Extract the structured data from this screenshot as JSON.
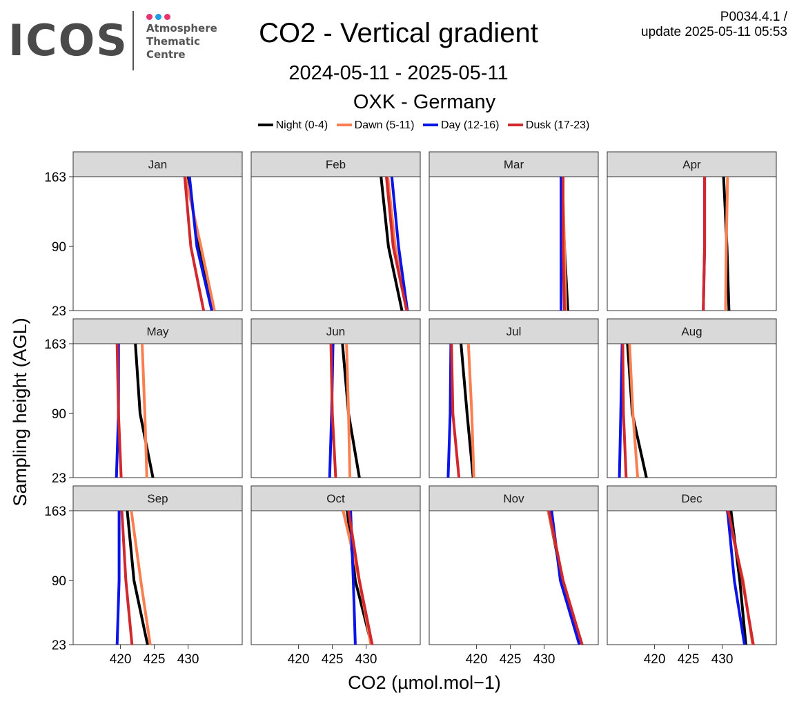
{
  "logo": {
    "wordmark": "ICOS",
    "lines": [
      "Atmosphere",
      "Thematic",
      "Centre"
    ],
    "dot_colors": [
      "#e6356f",
      "#1e9be9",
      "#e6356f"
    ]
  },
  "header": {
    "title": "CO2 - Vertical gradient",
    "date_range": "2024-05-11 - 2025-05-11",
    "site": "OXK - Germany",
    "version_line1": "P0034.4.1 /",
    "version_line2": "update  2025-05-11 05:53"
  },
  "chart_data": {
    "type": "line",
    "layout": "facet-grid 3x4",
    "xlabel": "CO2 (µmol.mol−1)",
    "ylabel": "Sampling height (AGL)",
    "xlim": [
      413,
      438
    ],
    "x_ticks": [
      420,
      425,
      430
    ],
    "y_ticks": [
      23,
      90,
      163
    ],
    "ylim": [
      23,
      163
    ],
    "legend_position": "top",
    "series": [
      {
        "name": "Night (0-4)",
        "color": "#000000"
      },
      {
        "name": "Dawn (5-11)",
        "color": "#f97f51"
      },
      {
        "name": "Day (12-16)",
        "color": "#0a14e6"
      },
      {
        "name": "Dusk (17-23)",
        "color": "#d1282d"
      }
    ],
    "heights": [
      23,
      90,
      163
    ],
    "panels": [
      {
        "month": "Jan",
        "values": {
          "Night (0-4)": [
            433.8,
            431.7,
            429.8
          ],
          "Dawn (5-11)": [
            433.9,
            431.9,
            429.6
          ],
          "Day (12-16)": [
            433.5,
            431.3,
            430.2
          ],
          "Dusk (17-23)": [
            432.3,
            430.4,
            429.5
          ]
        }
      },
      {
        "month": "Feb",
        "values": {
          "Night (0-4)": [
            435.3,
            433.3,
            432.2
          ],
          "Dawn (5-11)": [
            436.0,
            434.3,
            433.2
          ],
          "Day (12-16)": [
            436.1,
            434.8,
            433.8
          ],
          "Dusk (17-23)": [
            436.0,
            434.0,
            433.0
          ]
        }
      },
      {
        "month": "Mar",
        "values": {
          "Night (0-4)": [
            433.5,
            433.0,
            432.5
          ],
          "Dawn (5-11)": [
            433.2,
            433.0,
            432.7
          ],
          "Day (12-16)": [
            432.5,
            432.5,
            432.5
          ],
          "Dusk (17-23)": [
            433.0,
            432.8,
            432.8
          ]
        }
      },
      {
        "month": "Apr",
        "values": {
          "Night (0-4)": [
            431.0,
            430.7,
            430.2
          ],
          "Dawn (5-11)": [
            430.5,
            430.6,
            430.8
          ],
          "Day (12-16)": [
            427.2,
            427.4,
            427.4
          ],
          "Dusk (17-23)": [
            427.2,
            427.4,
            427.4
          ]
        }
      },
      {
        "month": "May",
        "values": {
          "Night (0-4)": [
            424.8,
            422.9,
            422.2
          ],
          "Dawn (5-11)": [
            423.9,
            423.6,
            423.2
          ],
          "Day (12-16)": [
            419.4,
            419.7,
            419.7
          ],
          "Dusk (17-23)": [
            420.1,
            419.7,
            419.5
          ]
        }
      },
      {
        "month": "Jun",
        "values": {
          "Night (0-4)": [
            429.0,
            427.4,
            426.5
          ],
          "Dawn (5-11)": [
            427.6,
            427.4,
            427.1
          ],
          "Day (12-16)": [
            424.6,
            424.9,
            425.1
          ],
          "Dusk (17-23)": [
            425.5,
            425.0,
            424.8
          ]
        }
      },
      {
        "month": "Jul",
        "values": {
          "Night (0-4)": [
            419.5,
            418.6,
            417.7
          ],
          "Dawn (5-11)": [
            419.6,
            419.3,
            418.8
          ],
          "Day (12-16)": [
            415.8,
            416.1,
            416.2
          ],
          "Dusk (17-23)": [
            417.4,
            416.5,
            416.3
          ]
        }
      },
      {
        "month": "Aug",
        "values": {
          "Night (0-4)": [
            418.8,
            416.7,
            416.0
          ],
          "Dawn (5-11)": [
            417.5,
            416.8,
            416.3
          ],
          "Day (12-16)": [
            414.8,
            415.0,
            415.2
          ],
          "Dusk (17-23)": [
            415.8,
            415.4,
            415.3
          ]
        }
      },
      {
        "month": "Sep",
        "values": {
          "Night (0-4)": [
            424.0,
            422.0,
            421.0
          ],
          "Dawn (5-11)": [
            424.4,
            423.0,
            421.6
          ],
          "Day (12-16)": [
            419.5,
            419.8,
            419.8
          ],
          "Dusk (17-23)": [
            421.7,
            420.8,
            420.2
          ]
        }
      },
      {
        "month": "Oct",
        "values": {
          "Night (0-4)": [
            430.8,
            428.4,
            427.2
          ],
          "Dawn (5-11)": [
            430.7,
            429.0,
            426.6
          ],
          "Day (12-16)": [
            428.4,
            428.1,
            427.7
          ],
          "Dusk (17-23)": [
            430.9,
            429.0,
            427.4
          ]
        }
      },
      {
        "month": "Nov",
        "values": {
          "Night (0-4)": [
            435.6,
            432.7,
            430.6
          ],
          "Dawn (5-11)": [
            435.5,
            432.8,
            430.6
          ],
          "Day (12-16)": [
            435.2,
            432.4,
            431.1
          ],
          "Dusk (17-23)": [
            435.6,
            432.8,
            430.7
          ]
        }
      },
      {
        "month": "Dec",
        "values": {
          "Night (0-4)": [
            433.5,
            432.6,
            431.3
          ],
          "Dawn (5-11)": [
            434.5,
            433.1,
            430.7
          ],
          "Day (12-16)": [
            433.3,
            431.8,
            430.8
          ],
          "Dusk (17-23)": [
            434.6,
            433.0,
            430.9
          ]
        }
      }
    ]
  }
}
